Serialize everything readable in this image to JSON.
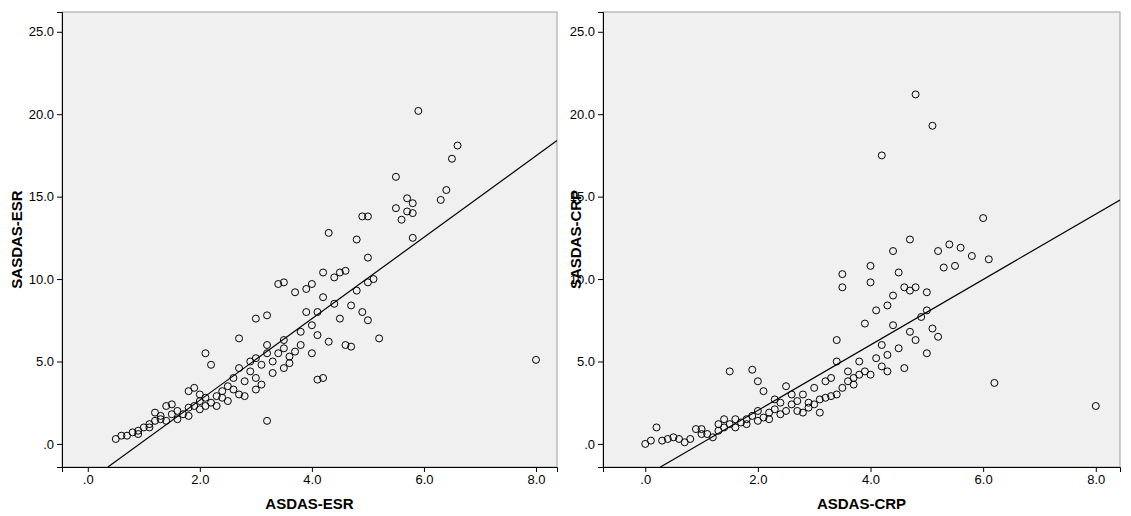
{
  "chart_data": [
    {
      "type": "scatter",
      "x_label": "ASDAS-ESR",
      "y_label": "SASDAS-ESR",
      "xlim": [
        -0.46,
        8.375
      ],
      "ylim": [
        -1.4,
        26.2
      ],
      "xticks": [
        {
          "value": 0,
          "label": ".0"
        },
        {
          "value": 2,
          "label": "2.0"
        },
        {
          "value": 4,
          "label": "4.0"
        },
        {
          "value": 6,
          "label": "6.0"
        },
        {
          "value": 8,
          "label": "8.0"
        }
      ],
      "yticks": [
        {
          "value": 0,
          "label": ".0"
        },
        {
          "value": 5,
          "label": "5.0"
        },
        {
          "value": 10,
          "label": "10.0"
        },
        {
          "value": 15,
          "label": "15.0"
        },
        {
          "value": 20,
          "label": "20.0"
        },
        {
          "value": 25,
          "label": "25.0"
        }
      ],
      "grid": false,
      "series": [
        {
          "type": "scatter",
          "marker": "circle",
          "color": "#000000",
          "x": [
            0.5,
            0.6,
            0.7,
            0.8,
            0.9,
            0.9,
            1.0,
            1.1,
            1.1,
            1.2,
            1.2,
            1.3,
            1.3,
            1.4,
            1.4,
            1.5,
            1.5,
            1.6,
            1.6,
            1.7,
            1.8,
            1.8,
            1.8,
            1.9,
            1.9,
            2.0,
            2.0,
            2.0,
            2.1,
            2.1,
            2.1,
            2.2,
            2.2,
            2.3,
            2.3,
            2.4,
            2.4,
            2.5,
            2.5,
            2.6,
            2.6,
            2.7,
            2.7,
            2.7,
            2.8,
            2.8,
            2.9,
            2.9,
            3.0,
            3.0,
            3.0,
            3.0,
            3.1,
            3.1,
            3.2,
            3.2,
            3.2,
            3.2,
            3.3,
            3.3,
            3.4,
            3.4,
            3.5,
            3.5,
            3.5,
            3.5,
            3.6,
            3.6,
            3.7,
            3.7,
            3.8,
            3.8,
            3.9,
            3.9,
            4.0,
            4.0,
            4.0,
            4.1,
            4.1,
            4.1,
            4.2,
            4.2,
            4.2,
            4.3,
            4.3,
            4.4,
            4.4,
            4.5,
            4.5,
            4.6,
            4.6,
            4.7,
            4.7,
            4.8,
            4.8,
            4.9,
            4.9,
            5.0,
            5.0,
            5.0,
            5.0,
            5.1,
            5.2,
            5.5,
            5.5,
            5.6,
            5.7,
            5.7,
            5.8,
            5.8,
            5.8,
            5.9,
            6.3,
            6.4,
            6.5,
            6.6,
            8.0
          ],
          "values": [
            0.3,
            0.5,
            0.5,
            0.7,
            0.8,
            0.6,
            1.0,
            1.0,
            1.2,
            1.4,
            1.9,
            1.5,
            1.7,
            1.4,
            2.3,
            1.8,
            2.4,
            1.5,
            2.0,
            1.8,
            1.7,
            2.2,
            3.2,
            2.3,
            3.4,
            2.1,
            2.6,
            3.0,
            2.3,
            5.5,
            2.8,
            2.5,
            4.8,
            2.9,
            2.3,
            2.8,
            3.2,
            2.6,
            3.5,
            3.3,
            4.0,
            3.0,
            4.6,
            6.4,
            2.9,
            3.8,
            4.4,
            5.0,
            3.3,
            4.0,
            5.2,
            7.6,
            3.6,
            4.8,
            1.4,
            5.5,
            6.0,
            7.8,
            4.3,
            5.0,
            5.5,
            9.7,
            4.6,
            5.8,
            6.3,
            9.8,
            4.9,
            5.3,
            5.6,
            9.2,
            6.0,
            6.8,
            8.0,
            9.4,
            5.5,
            7.2,
            9.7,
            3.9,
            6.6,
            8.0,
            4.0,
            8.9,
            10.4,
            12.8,
            6.2,
            8.5,
            10.1,
            10.4,
            7.6,
            10.5,
            6.0,
            5.9,
            8.4,
            9.3,
            12.4,
            13.8,
            8.0,
            7.5,
            13.8,
            11.3,
            9.8,
            10.0,
            6.4,
            14.3,
            16.2,
            13.6,
            14.1,
            14.9,
            14.0,
            12.5,
            14.6,
            20.2,
            14.8,
            15.4,
            17.3,
            18.1,
            5.1
          ]
        },
        {
          "type": "line",
          "line_style": "solid",
          "color": "#000000",
          "x": [
            0.36,
            8.375
          ],
          "values": [
            -1.4,
            18.4
          ]
        }
      ]
    },
    {
      "type": "scatter",
      "x_label": "ASDAS-CRP",
      "y_label": "SASDAS-CRP",
      "xlim": [
        -0.75,
        8.43
      ],
      "ylim": [
        -1.4,
        26.2
      ],
      "xticks": [
        {
          "value": 0,
          "label": ".0"
        },
        {
          "value": 2,
          "label": "2.0"
        },
        {
          "value": 4,
          "label": "4.0"
        },
        {
          "value": 6,
          "label": "6.0"
        },
        {
          "value": 8,
          "label": "8.0"
        }
      ],
      "yticks": [
        {
          "value": 0,
          "label": ".0"
        },
        {
          "value": 5,
          "label": "5.0"
        },
        {
          "value": 10,
          "label": "10.0"
        },
        {
          "value": 15,
          "label": "15.0"
        },
        {
          "value": 20,
          "label": "20.0"
        },
        {
          "value": 25,
          "label": "25.0"
        }
      ],
      "grid": false,
      "series": [
        {
          "type": "scatter",
          "marker": "circle",
          "color": "#000000",
          "x": [
            0.0,
            0.1,
            0.2,
            0.3,
            0.4,
            0.5,
            0.6,
            0.7,
            0.8,
            0.9,
            1.0,
            1.0,
            1.1,
            1.2,
            1.3,
            1.3,
            1.4,
            1.4,
            1.5,
            1.5,
            1.6,
            1.6,
            1.7,
            1.8,
            1.8,
            1.9,
            1.9,
            2.0,
            2.0,
            2.0,
            2.1,
            2.1,
            2.2,
            2.2,
            2.3,
            2.3,
            2.4,
            2.4,
            2.5,
            2.5,
            2.6,
            2.6,
            2.7,
            2.7,
            2.8,
            2.8,
            2.9,
            2.9,
            3.0,
            3.0,
            3.1,
            3.1,
            3.2,
            3.2,
            3.3,
            3.3,
            3.4,
            3.4,
            3.4,
            3.5,
            3.5,
            3.5,
            3.6,
            3.6,
            3.7,
            3.7,
            3.8,
            3.8,
            3.9,
            3.9,
            4.0,
            4.0,
            4.0,
            4.1,
            4.1,
            4.2,
            4.2,
            4.2,
            4.3,
            4.3,
            4.3,
            4.4,
            4.4,
            4.4,
            4.5,
            4.5,
            4.6,
            4.6,
            4.7,
            4.7,
            4.7,
            4.8,
            4.8,
            4.8,
            4.9,
            5.0,
            5.0,
            5.0,
            5.1,
            5.1,
            5.2,
            5.2,
            5.3,
            5.4,
            5.5,
            5.6,
            5.8,
            6.0,
            6.1,
            6.2,
            8.0
          ],
          "values": [
            0.0,
            0.2,
            1.0,
            0.2,
            0.3,
            0.4,
            0.3,
            0.1,
            0.3,
            0.9,
            0.6,
            0.9,
            0.6,
            0.4,
            0.8,
            1.2,
            1.0,
            1.5,
            1.2,
            4.4,
            1.0,
            1.5,
            1.3,
            1.2,
            1.5,
            4.5,
            1.7,
            1.4,
            3.8,
            2.0,
            1.6,
            3.2,
            1.9,
            1.5,
            2.1,
            2.7,
            1.8,
            2.5,
            3.5,
            2.0,
            2.4,
            3.0,
            2.0,
            2.6,
            1.9,
            3.0,
            2.5,
            2.2,
            3.4,
            2.4,
            2.7,
            1.9,
            3.8,
            2.8,
            4.0,
            2.9,
            5.0,
            3.0,
            6.3,
            9.5,
            3.4,
            10.3,
            3.8,
            4.4,
            4.0,
            3.6,
            4.2,
            5.0,
            7.3,
            4.4,
            10.8,
            4.2,
            9.8,
            5.2,
            8.1,
            17.5,
            4.7,
            6.0,
            5.4,
            8.4,
            4.4,
            11.7,
            7.2,
            9.0,
            5.8,
            10.4,
            9.5,
            4.6,
            12.4,
            6.8,
            9.3,
            21.2,
            6.3,
            9.5,
            7.7,
            9.2,
            5.5,
            8.1,
            19.3,
            7.0,
            11.7,
            6.5,
            10.7,
            12.1,
            10.8,
            11.9,
            11.4,
            13.7,
            11.2,
            3.7,
            2.3
          ]
        },
        {
          "type": "line",
          "line_style": "solid",
          "color": "#000000",
          "x": [
            0.27,
            8.43
          ],
          "values": [
            -1.4,
            14.8
          ]
        }
      ]
    }
  ]
}
